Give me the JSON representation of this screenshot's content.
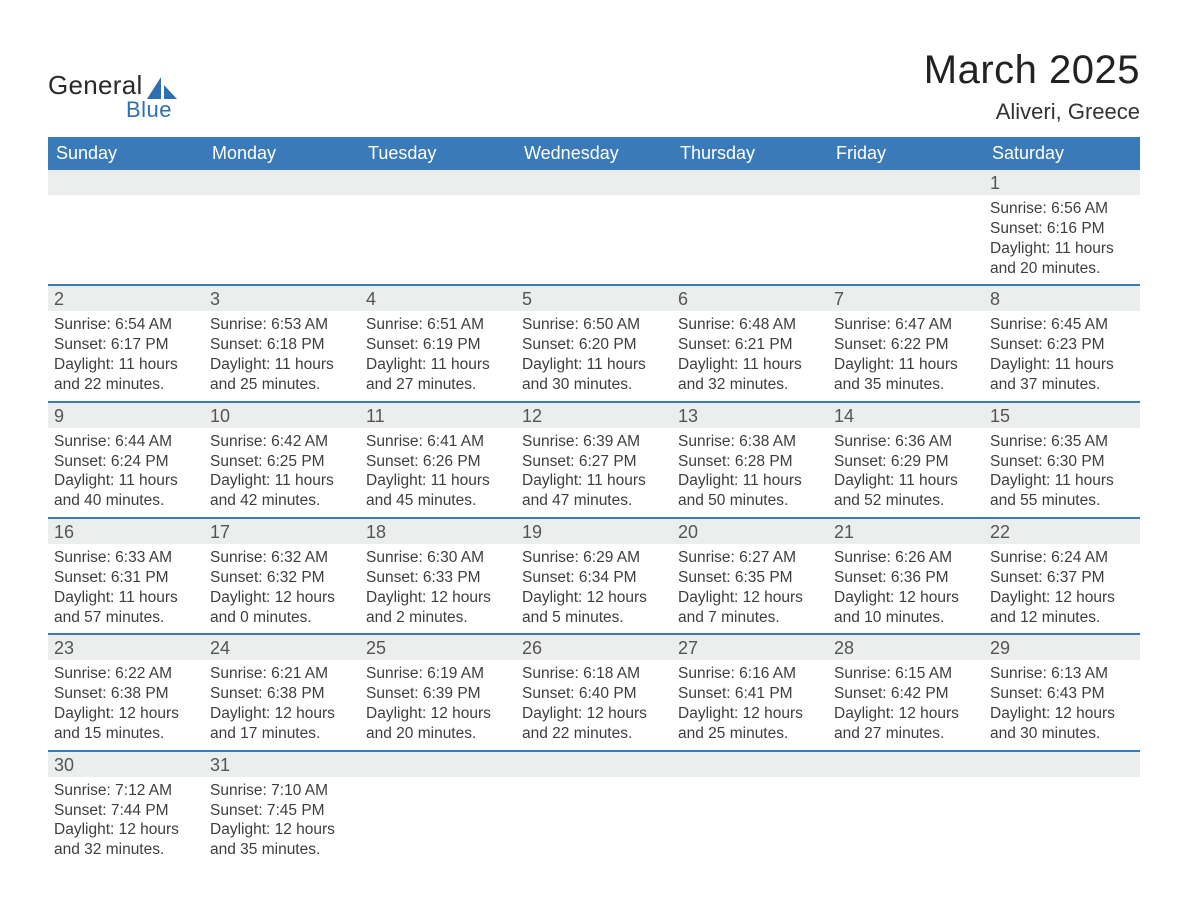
{
  "colors": {
    "header_row_bg": "#3b7ab8",
    "header_row_text": "#ffffff",
    "daynum_row_bg": "#eceded",
    "daynum_text": "#555555",
    "body_text": "#3e3e3e",
    "separator": "#3b7ab8",
    "page_bg": "#ffffff",
    "logo_dark": "#2a2a2a",
    "logo_blue": "#2f6fb0"
  },
  "typography": {
    "title_fontsize": 40,
    "subtitle_fontsize": 22,
    "weekday_fontsize": 18,
    "daynum_fontsize": 18,
    "cell_fontsize": 15.5,
    "font_family": "Arial"
  },
  "logo": {
    "text1": "General",
    "text2": "Blue"
  },
  "title": "March 2025",
  "subtitle": "Aliveri, Greece",
  "calendar": {
    "type": "table",
    "weekdays": [
      "Sunday",
      "Monday",
      "Tuesday",
      "Wednesday",
      "Thursday",
      "Friday",
      "Saturday"
    ],
    "weeks": [
      {
        "days": [
          null,
          null,
          null,
          null,
          null,
          null,
          {
            "n": "1",
            "sunrise": "Sunrise: 6:56 AM",
            "sunset": "Sunset: 6:16 PM",
            "d1": "Daylight: 11 hours",
            "d2": "and 20 minutes."
          }
        ]
      },
      {
        "days": [
          {
            "n": "2",
            "sunrise": "Sunrise: 6:54 AM",
            "sunset": "Sunset: 6:17 PM",
            "d1": "Daylight: 11 hours",
            "d2": "and 22 minutes."
          },
          {
            "n": "3",
            "sunrise": "Sunrise: 6:53 AM",
            "sunset": "Sunset: 6:18 PM",
            "d1": "Daylight: 11 hours",
            "d2": "and 25 minutes."
          },
          {
            "n": "4",
            "sunrise": "Sunrise: 6:51 AM",
            "sunset": "Sunset: 6:19 PM",
            "d1": "Daylight: 11 hours",
            "d2": "and 27 minutes."
          },
          {
            "n": "5",
            "sunrise": "Sunrise: 6:50 AM",
            "sunset": "Sunset: 6:20 PM",
            "d1": "Daylight: 11 hours",
            "d2": "and 30 minutes."
          },
          {
            "n": "6",
            "sunrise": "Sunrise: 6:48 AM",
            "sunset": "Sunset: 6:21 PM",
            "d1": "Daylight: 11 hours",
            "d2": "and 32 minutes."
          },
          {
            "n": "7",
            "sunrise": "Sunrise: 6:47 AM",
            "sunset": "Sunset: 6:22 PM",
            "d1": "Daylight: 11 hours",
            "d2": "and 35 minutes."
          },
          {
            "n": "8",
            "sunrise": "Sunrise: 6:45 AM",
            "sunset": "Sunset: 6:23 PM",
            "d1": "Daylight: 11 hours",
            "d2": "and 37 minutes."
          }
        ]
      },
      {
        "days": [
          {
            "n": "9",
            "sunrise": "Sunrise: 6:44 AM",
            "sunset": "Sunset: 6:24 PM",
            "d1": "Daylight: 11 hours",
            "d2": "and 40 minutes."
          },
          {
            "n": "10",
            "sunrise": "Sunrise: 6:42 AM",
            "sunset": "Sunset: 6:25 PM",
            "d1": "Daylight: 11 hours",
            "d2": "and 42 minutes."
          },
          {
            "n": "11",
            "sunrise": "Sunrise: 6:41 AM",
            "sunset": "Sunset: 6:26 PM",
            "d1": "Daylight: 11 hours",
            "d2": "and 45 minutes."
          },
          {
            "n": "12",
            "sunrise": "Sunrise: 6:39 AM",
            "sunset": "Sunset: 6:27 PM",
            "d1": "Daylight: 11 hours",
            "d2": "and 47 minutes."
          },
          {
            "n": "13",
            "sunrise": "Sunrise: 6:38 AM",
            "sunset": "Sunset: 6:28 PM",
            "d1": "Daylight: 11 hours",
            "d2": "and 50 minutes."
          },
          {
            "n": "14",
            "sunrise": "Sunrise: 6:36 AM",
            "sunset": "Sunset: 6:29 PM",
            "d1": "Daylight: 11 hours",
            "d2": "and 52 minutes."
          },
          {
            "n": "15",
            "sunrise": "Sunrise: 6:35 AM",
            "sunset": "Sunset: 6:30 PM",
            "d1": "Daylight: 11 hours",
            "d2": "and 55 minutes."
          }
        ]
      },
      {
        "days": [
          {
            "n": "16",
            "sunrise": "Sunrise: 6:33 AM",
            "sunset": "Sunset: 6:31 PM",
            "d1": "Daylight: 11 hours",
            "d2": "and 57 minutes."
          },
          {
            "n": "17",
            "sunrise": "Sunrise: 6:32 AM",
            "sunset": "Sunset: 6:32 PM",
            "d1": "Daylight: 12 hours",
            "d2": "and 0 minutes."
          },
          {
            "n": "18",
            "sunrise": "Sunrise: 6:30 AM",
            "sunset": "Sunset: 6:33 PM",
            "d1": "Daylight: 12 hours",
            "d2": "and 2 minutes."
          },
          {
            "n": "19",
            "sunrise": "Sunrise: 6:29 AM",
            "sunset": "Sunset: 6:34 PM",
            "d1": "Daylight: 12 hours",
            "d2": "and 5 minutes."
          },
          {
            "n": "20",
            "sunrise": "Sunrise: 6:27 AM",
            "sunset": "Sunset: 6:35 PM",
            "d1": "Daylight: 12 hours",
            "d2": "and 7 minutes."
          },
          {
            "n": "21",
            "sunrise": "Sunrise: 6:26 AM",
            "sunset": "Sunset: 6:36 PM",
            "d1": "Daylight: 12 hours",
            "d2": "and 10 minutes."
          },
          {
            "n": "22",
            "sunrise": "Sunrise: 6:24 AM",
            "sunset": "Sunset: 6:37 PM",
            "d1": "Daylight: 12 hours",
            "d2": "and 12 minutes."
          }
        ]
      },
      {
        "days": [
          {
            "n": "23",
            "sunrise": "Sunrise: 6:22 AM",
            "sunset": "Sunset: 6:38 PM",
            "d1": "Daylight: 12 hours",
            "d2": "and 15 minutes."
          },
          {
            "n": "24",
            "sunrise": "Sunrise: 6:21 AM",
            "sunset": "Sunset: 6:38 PM",
            "d1": "Daylight: 12 hours",
            "d2": "and 17 minutes."
          },
          {
            "n": "25",
            "sunrise": "Sunrise: 6:19 AM",
            "sunset": "Sunset: 6:39 PM",
            "d1": "Daylight: 12 hours",
            "d2": "and 20 minutes."
          },
          {
            "n": "26",
            "sunrise": "Sunrise: 6:18 AM",
            "sunset": "Sunset: 6:40 PM",
            "d1": "Daylight: 12 hours",
            "d2": "and 22 minutes."
          },
          {
            "n": "27",
            "sunrise": "Sunrise: 6:16 AM",
            "sunset": "Sunset: 6:41 PM",
            "d1": "Daylight: 12 hours",
            "d2": "and 25 minutes."
          },
          {
            "n": "28",
            "sunrise": "Sunrise: 6:15 AM",
            "sunset": "Sunset: 6:42 PM",
            "d1": "Daylight: 12 hours",
            "d2": "and 27 minutes."
          },
          {
            "n": "29",
            "sunrise": "Sunrise: 6:13 AM",
            "sunset": "Sunset: 6:43 PM",
            "d1": "Daylight: 12 hours",
            "d2": "and 30 minutes."
          }
        ]
      },
      {
        "days": [
          {
            "n": "30",
            "sunrise": "Sunrise: 7:12 AM",
            "sunset": "Sunset: 7:44 PM",
            "d1": "Daylight: 12 hours",
            "d2": "and 32 minutes."
          },
          {
            "n": "31",
            "sunrise": "Sunrise: 7:10 AM",
            "sunset": "Sunset: 7:45 PM",
            "d1": "Daylight: 12 hours",
            "d2": "and 35 minutes."
          },
          null,
          null,
          null,
          null,
          null
        ]
      }
    ]
  }
}
